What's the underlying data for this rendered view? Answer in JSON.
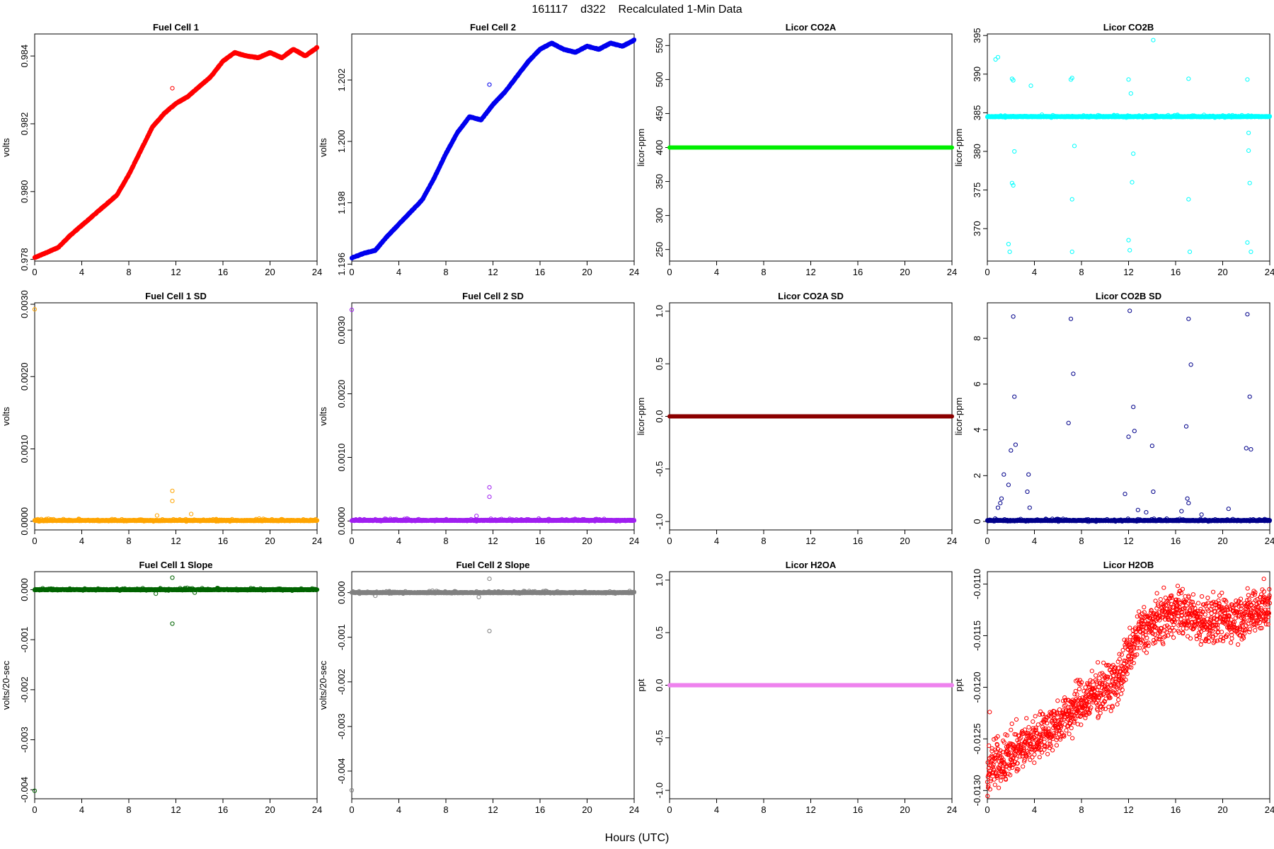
{
  "figure": {
    "title": "161117    d322    Recalculated 1-Min Data",
    "xlabel": "Hours (UTC)"
  },
  "chart_data": [
    {
      "type": "scatter",
      "title": "Fuel Cell 1",
      "ylabel": "volts",
      "color": "#ff0000",
      "xlim": [
        0,
        24
      ],
      "ylim": [
        0.97795,
        0.98465
      ],
      "xticks": [
        0,
        4,
        8,
        12,
        16,
        20,
        24
      ],
      "yticks": [
        0.978,
        0.98,
        0.982,
        0.984
      ],
      "ytick_labels": [
        "0.978",
        "0.980",
        "0.982",
        "0.984"
      ],
      "trace": {
        "x": [
          0,
          1,
          2,
          3,
          4,
          5,
          6,
          7,
          8,
          9,
          10,
          11,
          12,
          13,
          14,
          15,
          16,
          17,
          18,
          19,
          20,
          21,
          22,
          23,
          24
        ],
        "y": [
          0.97805,
          0.9782,
          0.97835,
          0.9787,
          0.979,
          0.9793,
          0.9796,
          0.9799,
          0.9805,
          0.9812,
          0.9819,
          0.9823,
          0.9826,
          0.9828,
          0.9831,
          0.9834,
          0.98385,
          0.9841,
          0.984,
          0.98395,
          0.9841,
          0.98395,
          0.9842,
          0.984,
          0.98425
        ]
      },
      "outliers": [
        {
          "x": 11.7,
          "y": 0.98305
        }
      ]
    },
    {
      "type": "scatter",
      "title": "Fuel Cell 2",
      "ylabel": "volts",
      "color": "#0000ee",
      "xlim": [
        0,
        24
      ],
      "ylim": [
        1.1961,
        1.2035
      ],
      "xticks": [
        0,
        4,
        8,
        12,
        16,
        20,
        24
      ],
      "yticks": [
        1.196,
        1.198,
        1.2,
        1.202
      ],
      "ytick_labels": [
        "1.196",
        "1.198",
        "1.200",
        "1.202"
      ],
      "trace": {
        "x": [
          0,
          1,
          2,
          3,
          4,
          5,
          6,
          7,
          8,
          9,
          10,
          11,
          12,
          13,
          14,
          15,
          16,
          17,
          18,
          19,
          20,
          21,
          22,
          23,
          24
        ],
        "y": [
          1.1962,
          1.19635,
          1.19645,
          1.1969,
          1.1973,
          1.1977,
          1.1981,
          1.1988,
          1.1996,
          1.2003,
          1.2008,
          1.2007,
          1.2012,
          1.2016,
          1.2021,
          1.2026,
          1.203,
          1.2032,
          1.203,
          1.2029,
          1.2031,
          1.203,
          1.2032,
          1.2031,
          1.2033
        ]
      },
      "outliers": [
        {
          "x": 11.7,
          "y": 1.20185
        }
      ]
    },
    {
      "type": "scatter",
      "title": "Licor CO2A",
      "ylabel": "licor-ppm",
      "color": "#00ee00",
      "xlim": [
        0,
        24
      ],
      "ylim": [
        233,
        567
      ],
      "xticks": [
        0,
        4,
        8,
        12,
        16,
        20,
        24
      ],
      "yticks": [
        250,
        300,
        350,
        400,
        450,
        500,
        550
      ],
      "ytick_labels": [
        "250",
        "300",
        "350",
        "400",
        "450",
        "500",
        "550"
      ],
      "constant": 400
    },
    {
      "type": "scatter",
      "title": "Licor CO2B",
      "ylabel": "licor-ppm",
      "color": "#00ffff",
      "xlim": [
        0,
        24
      ],
      "ylim": [
        365.8,
        395.2
      ],
      "xticks": [
        0,
        4,
        8,
        12,
        16,
        20,
        24
      ],
      "yticks": [
        370,
        375,
        380,
        385,
        390,
        395
      ],
      "ytick_labels": [
        "370",
        "375",
        "380",
        "385",
        "390",
        "395"
      ],
      "baseline": 384.5,
      "outliers": [
        {
          "x": 0.7,
          "y": 391.9
        },
        {
          "x": 0.9,
          "y": 392.2
        },
        {
          "x": 2.1,
          "y": 389.4
        },
        {
          "x": 2.2,
          "y": 389.2
        },
        {
          "x": 2.1,
          "y": 375.9
        },
        {
          "x": 2.2,
          "y": 375.6
        },
        {
          "x": 1.9,
          "y": 367.0
        },
        {
          "x": 1.8,
          "y": 368.0
        },
        {
          "x": 2.3,
          "y": 380.0
        },
        {
          "x": 3.7,
          "y": 388.5
        },
        {
          "x": 7.1,
          "y": 389.3
        },
        {
          "x": 7.2,
          "y": 389.5
        },
        {
          "x": 7.2,
          "y": 373.8
        },
        {
          "x": 7.2,
          "y": 367.0
        },
        {
          "x": 7.4,
          "y": 380.7
        },
        {
          "x": 12.0,
          "y": 389.3
        },
        {
          "x": 12.2,
          "y": 387.5
        },
        {
          "x": 12.3,
          "y": 376.0
        },
        {
          "x": 12.1,
          "y": 367.2
        },
        {
          "x": 12.0,
          "y": 368.5
        },
        {
          "x": 12.4,
          "y": 379.7
        },
        {
          "x": 14.1,
          "y": 394.4
        },
        {
          "x": 17.1,
          "y": 389.4
        },
        {
          "x": 17.1,
          "y": 373.8
        },
        {
          "x": 17.2,
          "y": 367.0
        },
        {
          "x": 22.1,
          "y": 389.3
        },
        {
          "x": 22.2,
          "y": 382.4
        },
        {
          "x": 22.3,
          "y": 375.9
        },
        {
          "x": 22.2,
          "y": 380.1
        },
        {
          "x": 22.1,
          "y": 368.2
        },
        {
          "x": 22.4,
          "y": 367.0
        }
      ]
    },
    {
      "type": "scatter",
      "title": "Fuel Cell 1 SD",
      "ylabel": "volts",
      "color": "#ffa500",
      "xlim": [
        0,
        24
      ],
      "ylim": [
        -0.00012,
        0.00302
      ],
      "xticks": [
        0,
        4,
        8,
        12,
        16,
        20,
        24
      ],
      "yticks": [
        0,
        0.001,
        0.002,
        0.003
      ],
      "ytick_labels": [
        "0.0000",
        "0.0010",
        "0.0020",
        "0.0030"
      ],
      "baseline": 1e-05,
      "outliers": [
        {
          "x": 0.0,
          "y": 0.00293
        },
        {
          "x": 11.7,
          "y": 0.00042
        },
        {
          "x": 11.7,
          "y": 0.00028
        },
        {
          "x": 13.3,
          "y": 0.0001
        },
        {
          "x": 10.4,
          "y": 8e-05
        }
      ]
    },
    {
      "type": "scatter",
      "title": "Fuel Cell 2 SD",
      "ylabel": "volts",
      "color": "#a020f0",
      "xlim": [
        0,
        24
      ],
      "ylim": [
        -0.00014,
        0.00343
      ],
      "xticks": [
        0,
        4,
        8,
        12,
        16,
        20,
        24
      ],
      "yticks": [
        0,
        0.001,
        0.002,
        0.003
      ],
      "ytick_labels": [
        "0.0000",
        "0.0010",
        "0.0020",
        "0.0030"
      ],
      "baseline": 1e-05,
      "outliers": [
        {
          "x": 0.0,
          "y": 0.00332
        },
        {
          "x": 11.7,
          "y": 0.00053
        },
        {
          "x": 11.7,
          "y": 0.00038
        },
        {
          "x": 10.6,
          "y": 8e-05
        }
      ]
    },
    {
      "type": "scatter",
      "title": "Licor CO2A SD",
      "ylabel": "licor-ppm",
      "color": "#8b0000",
      "xlim": [
        0,
        24
      ],
      "ylim": [
        -1.08,
        1.08
      ],
      "xticks": [
        0,
        4,
        8,
        12,
        16,
        20,
        24
      ],
      "yticks": [
        -1,
        -0.5,
        0,
        0.5,
        1
      ],
      "ytick_labels": [
        "-1.0",
        "-0.5",
        "0.0",
        "0.5",
        "1.0"
      ],
      "constant": 0
    },
    {
      "type": "scatter",
      "title": "Licor CO2B SD",
      "ylabel": "licor-ppm",
      "color": "#00008b",
      "xlim": [
        0,
        24
      ],
      "ylim": [
        -0.37,
        9.55
      ],
      "xticks": [
        0,
        4,
        8,
        12,
        16,
        20,
        24
      ],
      "yticks": [
        0,
        2,
        4,
        6,
        8
      ],
      "ytick_labels": [
        "0",
        "2",
        "4",
        "6",
        "8"
      ],
      "baseline": 0.04,
      "outliers": [
        {
          "x": 2.2,
          "y": 8.95
        },
        {
          "x": 2.3,
          "y": 5.45
        },
        {
          "x": 2.0,
          "y": 3.1
        },
        {
          "x": 2.4,
          "y": 3.35
        },
        {
          "x": 1.4,
          "y": 2.05
        },
        {
          "x": 3.5,
          "y": 2.05
        },
        {
          "x": 1.8,
          "y": 1.6
        },
        {
          "x": 3.4,
          "y": 1.3
        },
        {
          "x": 1.2,
          "y": 1.0
        },
        {
          "x": 1.1,
          "y": 0.8
        },
        {
          "x": 3.6,
          "y": 0.6
        },
        {
          "x": 0.9,
          "y": 0.6
        },
        {
          "x": 7.1,
          "y": 8.85
        },
        {
          "x": 7.3,
          "y": 6.45
        },
        {
          "x": 6.9,
          "y": 4.3
        },
        {
          "x": 12.1,
          "y": 9.2
        },
        {
          "x": 12.4,
          "y": 5.0
        },
        {
          "x": 12.5,
          "y": 3.95
        },
        {
          "x": 12.0,
          "y": 3.7
        },
        {
          "x": 11.7,
          "y": 1.2
        },
        {
          "x": 14.0,
          "y": 3.3
        },
        {
          "x": 14.1,
          "y": 1.3
        },
        {
          "x": 17.1,
          "y": 8.85
        },
        {
          "x": 17.3,
          "y": 6.85
        },
        {
          "x": 16.9,
          "y": 4.15
        },
        {
          "x": 17.0,
          "y": 1.0
        },
        {
          "x": 17.1,
          "y": 0.8
        },
        {
          "x": 22.1,
          "y": 9.05
        },
        {
          "x": 22.3,
          "y": 5.45
        },
        {
          "x": 22.0,
          "y": 3.2
        },
        {
          "x": 22.4,
          "y": 3.15
        },
        {
          "x": 20.5,
          "y": 0.55
        },
        {
          "x": 12.8,
          "y": 0.5
        },
        {
          "x": 16.5,
          "y": 0.45
        },
        {
          "x": 13.5,
          "y": 0.4
        },
        {
          "x": 18.2,
          "y": 0.3
        }
      ]
    },
    {
      "type": "scatter",
      "title": "Fuel Cell 1 Slope",
      "ylabel": "volts/20-sec",
      "color": "#006400",
      "xlim": [
        0,
        24
      ],
      "ylim": [
        -0.00418,
        0.00036
      ],
      "xticks": [
        0,
        4,
        8,
        12,
        16,
        20,
        24
      ],
      "yticks": [
        -0.004,
        -0.003,
        -0.002,
        -0.001,
        0
      ],
      "ytick_labels": [
        "-0.004",
        "-0.003",
        "-0.002",
        "-0.001",
        "0.000"
      ],
      "baseline": 0,
      "outliers": [
        {
          "x": 0.0,
          "y": -0.00402
        },
        {
          "x": 11.7,
          "y": -0.00068
        },
        {
          "x": 11.7,
          "y": 0.00024
        },
        {
          "x": 10.3,
          "y": -8e-05
        },
        {
          "x": 13.6,
          "y": -6e-05
        }
      ]
    },
    {
      "type": "scatter",
      "title": "Fuel Cell 2 Slope",
      "ylabel": "volts/20-sec",
      "color": "#808080",
      "xlim": [
        0,
        24
      ],
      "ylim": [
        -0.00462,
        0.00047
      ],
      "xticks": [
        0,
        4,
        8,
        12,
        16,
        20,
        24
      ],
      "yticks": [
        -0.004,
        -0.003,
        -0.002,
        -0.001,
        0
      ],
      "ytick_labels": [
        "-0.004",
        "-0.003",
        "-0.002",
        "-0.001",
        "0.000"
      ],
      "baseline": 0,
      "outliers": [
        {
          "x": 0.0,
          "y": -0.00443
        },
        {
          "x": 11.7,
          "y": -0.00086
        },
        {
          "x": 11.7,
          "y": 0.00031
        },
        {
          "x": 10.8,
          "y": -0.0001
        },
        {
          "x": 2.0,
          "y": -7e-05
        }
      ]
    },
    {
      "type": "scatter",
      "title": "Licor H2OA",
      "ylabel": "ppt",
      "color": "#ee82ee",
      "xlim": [
        0,
        24
      ],
      "ylim": [
        -1.08,
        1.08
      ],
      "xticks": [
        0,
        4,
        8,
        12,
        16,
        20,
        24
      ],
      "yticks": [
        -1,
        -0.5,
        0,
        0.5,
        1
      ],
      "ytick_labels": [
        "-1.0",
        "-0.5",
        "0.0",
        "0.5",
        "1.0"
      ],
      "constant": 0
    },
    {
      "type": "scatter",
      "title": "Licor H2OB",
      "ylabel": "ppt",
      "color": "#ff0000",
      "xlim": [
        0,
        24
      ],
      "ylim": [
        -0.01308,
        -0.01088
      ],
      "xticks": [
        0,
        4,
        8,
        12,
        16,
        20,
        24
      ],
      "yticks": [
        -0.013,
        -0.0125,
        -0.012,
        -0.0115,
        -0.011
      ],
      "ytick_labels": [
        "-0.0130",
        "-0.0125",
        "-0.0120",
        "-0.0115",
        "-0.0110"
      ],
      "trace": {
        "x": [
          0,
          2,
          4,
          6,
          8,
          10,
          11,
          12,
          13,
          14,
          16,
          18,
          20,
          22,
          24
        ],
        "y": [
          -0.0128,
          -0.01265,
          -0.0125,
          -0.01235,
          -0.01215,
          -0.012,
          -0.01195,
          -0.0117,
          -0.01145,
          -0.0114,
          -0.01125,
          -0.01135,
          -0.01135,
          -0.0113,
          -0.0112
        ]
      },
      "spread": 0.00033,
      "outliers": [
        {
          "x": 0.2,
          "y": -0.01224
        },
        {
          "x": 23.5,
          "y": -0.01095
        }
      ]
    }
  ]
}
